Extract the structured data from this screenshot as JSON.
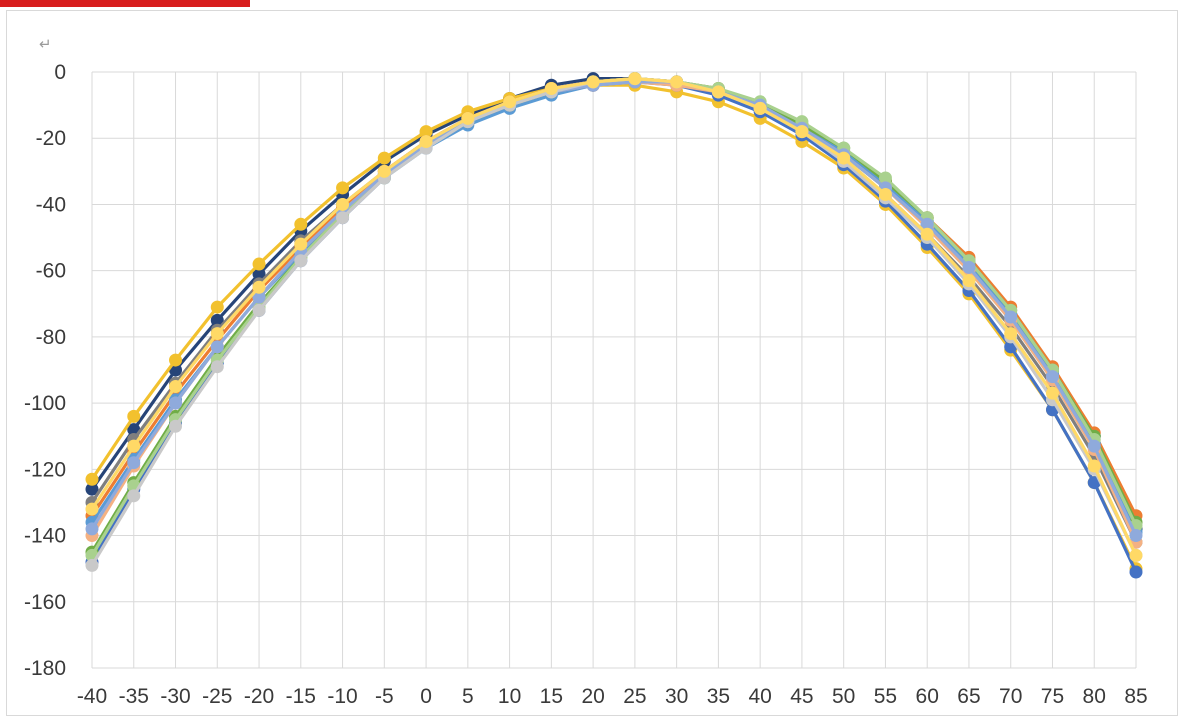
{
  "decor": {
    "return_mark": "↵"
  },
  "chart_data": {
    "type": "line",
    "title": "",
    "xlabel": "",
    "ylabel": "",
    "categories": [
      -40,
      -35,
      -30,
      -25,
      -20,
      -15,
      -10,
      -5,
      0,
      5,
      10,
      15,
      20,
      25,
      30,
      35,
      40,
      45,
      50,
      55,
      60,
      65,
      70,
      75,
      80,
      85
    ],
    "ylim": [
      -180,
      0
    ],
    "yticks": [
      0,
      -20,
      -40,
      -60,
      -80,
      -100,
      -120,
      -140,
      -160,
      -180
    ],
    "grid": true,
    "legend": "none",
    "series": [
      {
        "color": "#264478",
        "values": [
          -126,
          -108,
          -90,
          -75,
          -61,
          -48,
          -37,
          -27,
          -19,
          -13,
          -8,
          -4,
          -2,
          -2,
          -3,
          -6,
          -11,
          -17,
          -25,
          -35,
          -46,
          -58,
          -73,
          -90,
          -110,
          -138
        ]
      },
      {
        "color": "#f2c12e",
        "values": [
          -123,
          -104,
          -87,
          -71,
          -58,
          -46,
          -35,
          -26,
          -18,
          -12,
          -8,
          -5,
          -4,
          -4,
          -6,
          -9,
          -14,
          -21,
          -29,
          -40,
          -53,
          -67,
          -84,
          -102,
          -124,
          -150
        ]
      },
      {
        "color": "#7f7f7f",
        "values": [
          -130,
          -111,
          -94,
          -78,
          -64,
          -51,
          -40,
          -30,
          -21,
          -14,
          -9,
          -5,
          -3,
          -2,
          -3,
          -6,
          -11,
          -18,
          -27,
          -37,
          -49,
          -62,
          -77,
          -95,
          -116,
          -142
        ]
      },
      {
        "color": "#ed7d31",
        "values": [
          -134,
          -115,
          -97,
          -81,
          -66,
          -53,
          -41,
          -30,
          -21,
          -14,
          -9,
          -5,
          -3,
          -2,
          -3,
          -5,
          -10,
          -16,
          -24,
          -33,
          -44,
          -56,
          -71,
          -89,
          -109,
          -134
        ]
      },
      {
        "color": "#5b9bd5",
        "values": [
          -136,
          -117,
          -99,
          -83,
          -68,
          -55,
          -43,
          -32,
          -23,
          -16,
          -11,
          -7,
          -4,
          -3,
          -3,
          -6,
          -10,
          -16,
          -24,
          -34,
          -45,
          -58,
          -73,
          -91,
          -112,
          -139
        ]
      },
      {
        "color": "#4472c4",
        "values": [
          -148,
          -126,
          -106,
          -88,
          -72,
          -57,
          -44,
          -32,
          -22,
          -15,
          -10,
          -6,
          -4,
          -3,
          -4,
          -7,
          -12,
          -19,
          -28,
          -39,
          -52,
          -66,
          -83,
          -102,
          -124,
          -151
        ]
      },
      {
        "color": "#70ad47",
        "values": [
          -145,
          -124,
          -104,
          -86,
          -70,
          -56,
          -43,
          -31,
          -22,
          -15,
          -10,
          -6,
          -3,
          -2,
          -3,
          -5,
          -10,
          -16,
          -23,
          -33,
          -44,
          -57,
          -72,
          -90,
          -110,
          -136
        ]
      },
      {
        "color": "#a9d18e",
        "values": [
          -146,
          -125,
          -105,
          -87,
          -71,
          -56,
          -43,
          -32,
          -22,
          -15,
          -10,
          -6,
          -3,
          -2,
          -3,
          -5,
          -9,
          -15,
          -23,
          -32,
          -44,
          -57,
          -72,
          -90,
          -111,
          -137
        ]
      },
      {
        "color": "#f4b183",
        "values": [
          -140,
          -119,
          -100,
          -83,
          -68,
          -54,
          -42,
          -31,
          -22,
          -15,
          -10,
          -6,
          -4,
          -3,
          -4,
          -6,
          -11,
          -17,
          -25,
          -35,
          -47,
          -60,
          -75,
          -93,
          -114,
          -142
        ]
      },
      {
        "color": "#8faadc",
        "values": [
          -138,
          -118,
          -100,
          -83,
          -68,
          -54,
          -42,
          -31,
          -22,
          -15,
          -10,
          -6,
          -4,
          -3,
          -3,
          -6,
          -10,
          -17,
          -25,
          -35,
          -46,
          -59,
          -74,
          -92,
          -113,
          -140
        ]
      },
      {
        "color": "#c9c9c9",
        "values": [
          -149,
          -128,
          -107,
          -89,
          -72,
          -57,
          -44,
          -32,
          -23,
          -15,
          -10,
          -6,
          -3,
          -2,
          -3,
          -6,
          -11,
          -18,
          -27,
          -38,
          -50,
          -64,
          -80,
          -99,
          -120,
          -146
        ]
      },
      {
        "color": "#ffd966",
        "values": [
          -132,
          -113,
          -95,
          -79,
          -65,
          -52,
          -40,
          -30,
          -21,
          -14,
          -9,
          -5,
          -3,
          -2,
          -3,
          -6,
          -11,
          -18,
          -26,
          -37,
          -49,
          -63,
          -79,
          -97,
          -119,
          -146
        ]
      }
    ]
  }
}
